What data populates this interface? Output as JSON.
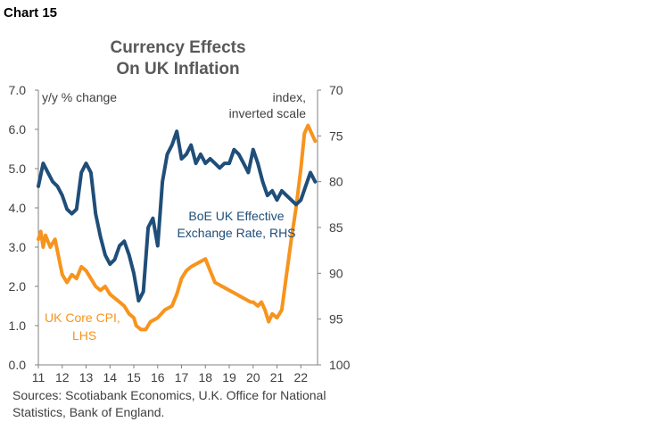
{
  "header": {
    "chart_label": "Chart 15"
  },
  "colors": {
    "blue_series": "#1F4E79",
    "orange_series": "#F7941D",
    "axis": "#808080",
    "text": "#404040"
  },
  "source": "Sources: Scotiabank Economics, U.K. Office for National Statistics, Bank of England.",
  "chart_data": {
    "type": "line",
    "title": [
      "Currency Effects",
      "On UK Inflation"
    ],
    "ylabel_left": "y/y % change",
    "ylabel_right": [
      "index,",
      "inverted scale"
    ],
    "x_tick_labels": [
      "11",
      "12",
      "13",
      "14",
      "15",
      "16",
      "17",
      "18",
      "19",
      "20",
      "21",
      "22"
    ],
    "xlim": [
      2011.0,
      2022.7
    ],
    "ylim_left": [
      0,
      7
    ],
    "left_ticks": [
      "0.0",
      "1.0",
      "2.0",
      "3.0",
      "4.0",
      "5.0",
      "6.0",
      "7.0"
    ],
    "ylim_right": [
      100,
      70
    ],
    "right_ticks": [
      "70",
      "75",
      "80",
      "85",
      "90",
      "95",
      "100"
    ],
    "right_axis_inverted": true,
    "grid": false,
    "series": [
      {
        "name": "UK Core CPI, LHS",
        "label_lines": [
          "UK Core CPI,",
          "LHS"
        ],
        "axis": "left",
        "x": [
          2011.0,
          2011.1,
          2011.2,
          2011.3,
          2011.5,
          2011.7,
          2011.9,
          2012.0,
          2012.2,
          2012.4,
          2012.6,
          2012.8,
          2013.0,
          2013.2,
          2013.4,
          2013.6,
          2013.8,
          2014.0,
          2014.2,
          2014.4,
          2014.6,
          2014.8,
          2015.0,
          2015.1,
          2015.3,
          2015.5,
          2015.7,
          2016.0,
          2016.3,
          2016.6,
          2016.8,
          2017.0,
          2017.2,
          2017.4,
          2017.7,
          2018.0,
          2018.2,
          2018.4,
          2018.7,
          2019.0,
          2019.3,
          2019.6,
          2019.9,
          2020.0,
          2020.2,
          2020.35,
          2020.5,
          2020.65,
          2020.8,
          2021.0,
          2021.2,
          2021.4,
          2021.6,
          2021.8,
          2022.0,
          2022.15,
          2022.3,
          2022.45,
          2022.6
        ],
        "y": [
          3.2,
          3.4,
          3.0,
          3.3,
          3.0,
          3.2,
          2.6,
          2.3,
          2.1,
          2.3,
          2.2,
          2.5,
          2.4,
          2.2,
          2.0,
          1.9,
          2.0,
          1.8,
          1.7,
          1.6,
          1.5,
          1.3,
          1.2,
          1.0,
          0.9,
          0.9,
          1.1,
          1.2,
          1.4,
          1.5,
          1.8,
          2.2,
          2.4,
          2.5,
          2.6,
          2.7,
          2.4,
          2.1,
          2.0,
          1.9,
          1.8,
          1.7,
          1.6,
          1.6,
          1.5,
          1.6,
          1.4,
          1.1,
          1.3,
          1.2,
          1.4,
          2.3,
          3.2,
          4.0,
          5.0,
          5.9,
          6.1,
          5.9,
          5.7
        ]
      },
      {
        "name": "BoE UK Effective Exchange Rate, RHS",
        "label_lines": [
          "BoE UK Effective",
          "Exchange Rate, RHS"
        ],
        "axis": "right",
        "x": [
          2011.0,
          2011.2,
          2011.4,
          2011.6,
          2011.8,
          2012.0,
          2012.2,
          2012.4,
          2012.6,
          2012.8,
          2013.0,
          2013.2,
          2013.4,
          2013.6,
          2013.8,
          2014.0,
          2014.2,
          2014.4,
          2014.6,
          2014.8,
          2015.0,
          2015.2,
          2015.4,
          2015.6,
          2015.8,
          2016.0,
          2016.2,
          2016.4,
          2016.6,
          2016.8,
          2017.0,
          2017.2,
          2017.4,
          2017.6,
          2017.8,
          2018.0,
          2018.2,
          2018.4,
          2018.6,
          2018.8,
          2019.0,
          2019.2,
          2019.4,
          2019.6,
          2019.8,
          2020.0,
          2020.2,
          2020.4,
          2020.6,
          2020.8,
          2021.0,
          2021.2,
          2021.4,
          2021.6,
          2021.8,
          2022.0,
          2022.2,
          2022.4,
          2022.6
        ],
        "y": [
          80.5,
          78.0,
          79.0,
          80.0,
          80.5,
          81.5,
          83.0,
          83.5,
          83.0,
          79.0,
          78.0,
          79.0,
          83.5,
          86.0,
          88.0,
          89.0,
          88.5,
          87.0,
          86.5,
          88.0,
          90.0,
          93.0,
          92.0,
          85.0,
          84.0,
          87.0,
          80.0,
          77.0,
          76.0,
          74.5,
          77.5,
          77.0,
          76.0,
          78.0,
          77.0,
          78.0,
          77.5,
          78.0,
          78.5,
          78.0,
          78.0,
          76.5,
          77.0,
          78.0,
          79.0,
          76.5,
          78.0,
          80.0,
          81.5,
          81.0,
          82.0,
          81.0,
          81.5,
          82.0,
          82.5,
          82.0,
          80.5,
          79.0,
          80.0
        ]
      }
    ]
  }
}
